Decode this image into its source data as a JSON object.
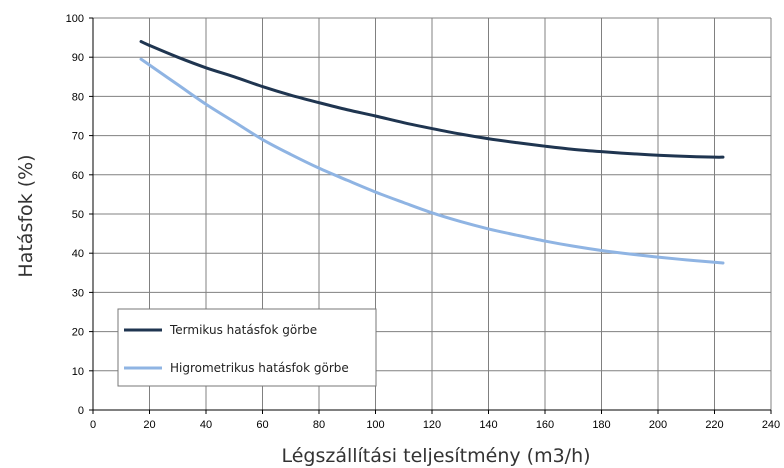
{
  "chart_data": {
    "type": "line",
    "title": "",
    "xlabel": "Légszállítási teljesítmény (m3/h)",
    "ylabel": "Hatásfok (%)",
    "xlim": [
      0,
      240
    ],
    "ylim": [
      0,
      100
    ],
    "x_ticks": [
      "0",
      "20",
      "40",
      "60",
      "80",
      "100",
      "120",
      "140",
      "160",
      "180",
      "200",
      "220",
      "240"
    ],
    "y_ticks": [
      "0",
      "10",
      "20",
      "30",
      "40",
      "50",
      "60",
      "70",
      "80",
      "90",
      "100"
    ],
    "grid": true,
    "legend_position": "bottom-left",
    "series": [
      {
        "name": "Termikus hatásfok görbe",
        "color": "#1f3550",
        "x": [
          17,
          20,
          30,
          40,
          50,
          60,
          70,
          80,
          90,
          100,
          110,
          120,
          130,
          140,
          150,
          160,
          170,
          180,
          190,
          200,
          210,
          220,
          223
        ],
        "y": [
          94,
          93,
          90,
          87.3,
          85,
          82.5,
          80.3,
          78.4,
          76.6,
          75,
          73.3,
          71.8,
          70.4,
          69.2,
          68.2,
          67.3,
          66.5,
          65.9,
          65.4,
          65,
          64.7,
          64.5,
          64.5
        ]
      },
      {
        "name": "Higrometrikus hatásfok görbe",
        "color": "#8fb4e3",
        "x": [
          17,
          20,
          30,
          40,
          50,
          60,
          70,
          80,
          90,
          100,
          110,
          120,
          130,
          140,
          150,
          160,
          170,
          180,
          190,
          200,
          210,
          220,
          223
        ],
        "y": [
          89.5,
          88,
          83,
          78,
          73.5,
          69,
          65.2,
          61.7,
          58.6,
          55.6,
          52.9,
          50.3,
          48.1,
          46.2,
          44.6,
          43.1,
          41.8,
          40.7,
          39.8,
          39,
          38.3,
          37.7,
          37.5
        ]
      }
    ]
  }
}
